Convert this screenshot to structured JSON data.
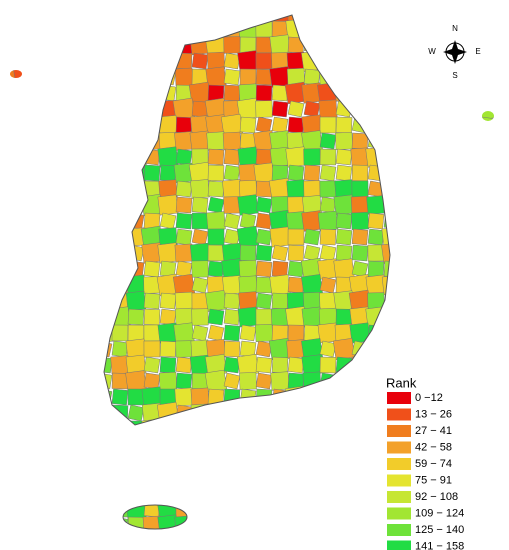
{
  "compass": {
    "north": "N",
    "east": "E",
    "south": "S",
    "west": "W"
  },
  "legend": {
    "title": "Rank",
    "items": [
      {
        "label": "0 −12",
        "color": "#e8000b"
      },
      {
        "label": "13 − 26",
        "color": "#f0501a"
      },
      {
        "label": "27 − 41",
        "color": "#f07d1e"
      },
      {
        "label": "42 − 58",
        "color": "#f3a12a"
      },
      {
        "label": "59 − 74",
        "color": "#f2cc2a"
      },
      {
        "label": "75 − 91",
        "color": "#e4e430"
      },
      {
        "label": "92 − 108",
        "color": "#c6e634"
      },
      {
        "label": "109 − 124",
        "color": "#a2e632"
      },
      {
        "label": "125 − 140",
        "color": "#6ee23a"
      },
      {
        "label": "141 − 158",
        "color": "#22dc44"
      }
    ]
  }
}
